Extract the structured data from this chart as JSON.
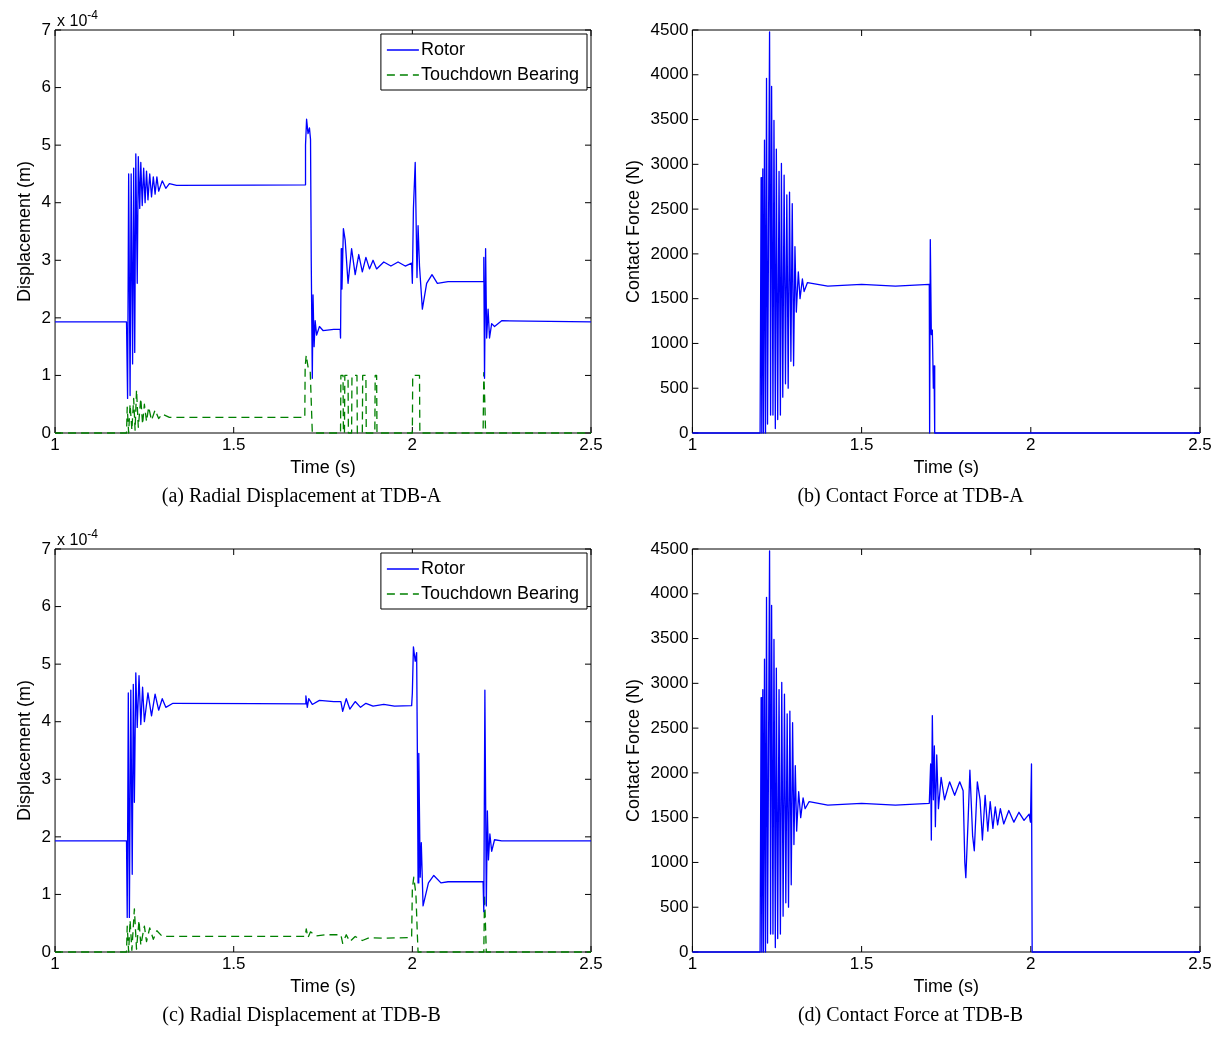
{
  "chart_data": [
    {
      "type": "line",
      "title": "(a) Radial Displacement at TDB-A",
      "xlabel": "Time (s)",
      "ylabel": "Displacement (m)",
      "annotations": [
        "x 10$^{-4}$"
      ],
      "xlim": [
        1,
        2.5
      ],
      "xticks": [
        1,
        1.5,
        2,
        2.5
      ],
      "ylim": [
        0,
        7
      ],
      "yticks": [
        0,
        1,
        2,
        3,
        4,
        5,
        6,
        7
      ],
      "grid": false,
      "legend": "top right",
      "series": [
        {
          "name": "Rotor",
          "color": "#0000ff",
          "line_style": "solid",
          "x": [
            1,
            1.2,
            1.203,
            1.206,
            1.21,
            1.213,
            1.217,
            1.22,
            1.223,
            1.226,
            1.23,
            1.233,
            1.237,
            1.24,
            1.244,
            1.248,
            1.252,
            1.256,
            1.26,
            1.265,
            1.27,
            1.275,
            1.28,
            1.285,
            1.29,
            1.3,
            1.31,
            1.32,
            1.34,
            1.7,
            1.701,
            1.704,
            1.708,
            1.712,
            1.715,
            1.717,
            1.72,
            1.722,
            1.725,
            1.728,
            1.732,
            1.74,
            1.75,
            1.78,
            1.798,
            1.799,
            1.801,
            1.803,
            1.807,
            1.812,
            1.82,
            1.83,
            1.84,
            1.85,
            1.86,
            1.87,
            1.88,
            1.89,
            1.9,
            1.92,
            1.94,
            1.96,
            1.98,
            1.998,
            2.0,
            2.003,
            2.008,
            2.013,
            2.016,
            2.02,
            2.028,
            2.04,
            2.055,
            2.07,
            2.1,
            2.198,
            2.2,
            2.202,
            2.205,
            2.208,
            2.212,
            2.216,
            2.222,
            2.23,
            2.25,
            2.5
          ],
          "values": [
            1.93,
            1.93,
            0.6,
            4.5,
            0.65,
            4.5,
            1.2,
            4.6,
            1.4,
            4.85,
            2.6,
            4.8,
            3.9,
            4.7,
            3.95,
            4.6,
            4.0,
            4.55,
            4.05,
            4.5,
            4.1,
            4.45,
            4.15,
            4.45,
            4.2,
            4.38,
            4.25,
            4.33,
            4.3,
            4.31,
            5.0,
            5.45,
            5.2,
            5.3,
            5.1,
            3.0,
            0.95,
            2.4,
            1.5,
            1.95,
            1.7,
            1.85,
            1.78,
            1.8,
            1.8,
            1.65,
            3.2,
            2.5,
            3.55,
            3.35,
            2.6,
            3.2,
            2.75,
            3.1,
            2.8,
            3.05,
            2.85,
            3.0,
            2.85,
            2.97,
            2.9,
            2.97,
            2.9,
            2.95,
            2.6,
            3.9,
            4.7,
            2.7,
            3.6,
            2.9,
            2.15,
            2.6,
            2.75,
            2.6,
            2.63,
            2.63,
            3.05,
            0.95,
            3.2,
            1.65,
            2.15,
            1.65,
            1.9,
            1.85,
            1.95,
            1.93
          ]
        },
        {
          "name": "Touchdown Bearing",
          "color": "#008000",
          "line_style": "dashed",
          "x": [
            1,
            1.2,
            1.202,
            1.206,
            1.21,
            1.215,
            1.22,
            1.224,
            1.228,
            1.233,
            1.24,
            1.245,
            1.25,
            1.256,
            1.262,
            1.27,
            1.28,
            1.29,
            1.3,
            1.32,
            1.699,
            1.7,
            1.703,
            1.708,
            1.714,
            1.72,
            1.799,
            1.8,
            1.806,
            1.807,
            1.81,
            1.811,
            1.82,
            1.821,
            1.83,
            1.831,
            1.845,
            1.846,
            1.86,
            1.861,
            1.87,
            1.871,
            1.895,
            1.896,
            1.9,
            1.901,
            2.0,
            2.001,
            2.02,
            2.021,
            2.198,
            2.2,
            2.203,
            2.205,
            2.5
          ],
          "values": [
            0,
            0,
            0.45,
            0,
            0.5,
            0.05,
            0.6,
            0.05,
            0.75,
            0.1,
            0.6,
            0.15,
            0.5,
            0.2,
            0.45,
            0.22,
            0.4,
            0.25,
            0.33,
            0.27,
            0.27,
            1.15,
            1.35,
            1.15,
            1.1,
            0,
            0,
            1.0,
            1.0,
            0,
            0,
            1.0,
            1.0,
            0,
            0,
            1.0,
            1.0,
            0,
            0,
            1.0,
            1.0,
            0,
            0,
            1.0,
            1.0,
            0,
            0,
            1.0,
            1.0,
            0,
            0,
            1.05,
            0.5,
            0,
            0
          ]
        }
      ]
    },
    {
      "type": "line",
      "title": "(b) Contact Force at TDB-A",
      "xlabel": "Time (s)",
      "ylabel": "Contact Force (N)",
      "xlim": [
        1,
        2.5
      ],
      "xticks": [
        1,
        1.5,
        2,
        2.5
      ],
      "ylim": [
        0,
        4500
      ],
      "yticks": [
        0,
        500,
        1000,
        1500,
        2000,
        2500,
        3000,
        3500,
        4000,
        4500
      ],
      "grid": false,
      "series": [
        {
          "color": "#0000ff",
          "line_style": "solid",
          "x": [
            1,
            1.2,
            1.203,
            1.205,
            1.208,
            1.21,
            1.213,
            1.216,
            1.219,
            1.222,
            1.228,
            1.231,
            1.234,
            1.238,
            1.241,
            1.245,
            1.248,
            1.252,
            1.256,
            1.26,
            1.263,
            1.267,
            1.271,
            1.275,
            1.279,
            1.283,
            1.287,
            1.291,
            1.295,
            1.299,
            1.303,
            1.307,
            1.313,
            1.318,
            1.325,
            1.33,
            1.34,
            1.4,
            1.5,
            1.6,
            1.7,
            1.701,
            1.703,
            1.706,
            1.709,
            1.712,
            1.714,
            1.716,
            2.5
          ],
          "values": [
            0,
            0,
            2850,
            0,
            2950,
            0,
            3270,
            0,
            3960,
            100,
            4480,
            200,
            3870,
            200,
            3490,
            50,
            3170,
            150,
            2920,
            200,
            3010,
            400,
            2880,
            550,
            2660,
            500,
            2690,
            800,
            2560,
            750,
            2080,
            1350,
            1800,
            1500,
            1720,
            1580,
            1680,
            1640,
            1660,
            1640,
            1660,
            0,
            2160,
            1100,
            1150,
            500,
            750,
            0,
            0
          ]
        }
      ]
    },
    {
      "type": "line",
      "title": "(c) Radial Displacement at TDB-B",
      "xlabel": "Time (s)",
      "ylabel": "Displacement (m)",
      "annotations": [
        "x 10$^{-4}$"
      ],
      "xlim": [
        1,
        2.5
      ],
      "xticks": [
        1,
        1.5,
        2,
        2.5
      ],
      "ylim": [
        0,
        7
      ],
      "yticks": [
        0,
        1,
        2,
        3,
        4,
        5,
        6,
        7
      ],
      "grid": false,
      "legend": "top right",
      "series": [
        {
          "name": "Rotor",
          "color": "#0000ff",
          "line_style": "solid",
          "x": [
            1,
            1.2,
            1.202,
            1.205,
            1.208,
            1.212,
            1.216,
            1.219,
            1.222,
            1.226,
            1.23,
            1.235,
            1.24,
            1.245,
            1.25,
            1.26,
            1.27,
            1.28,
            1.29,
            1.3,
            1.31,
            1.33,
            1.7,
            1.702,
            1.706,
            1.71,
            1.72,
            1.74,
            1.78,
            1.8,
            1.805,
            1.815,
            1.825,
            1.84,
            1.855,
            1.87,
            1.89,
            1.92,
            1.95,
            1.998,
            2.0,
            2.003,
            2.008,
            2.012,
            2.014,
            2.016,
            2.018,
            2.022,
            2.025,
            2.03,
            2.045,
            2.06,
            2.08,
            2.1,
            2.198,
            2.2,
            2.203,
            2.207,
            2.21,
            2.213,
            2.217,
            2.222,
            2.23,
            2.25,
            2.5
          ],
          "values": [
            1.93,
            1.93,
            0.6,
            4.5,
            0.6,
            4.55,
            1.35,
            4.65,
            2.6,
            4.85,
            3.9,
            4.8,
            3.95,
            4.6,
            4.0,
            4.5,
            4.1,
            4.48,
            4.2,
            4.4,
            4.25,
            4.32,
            4.31,
            4.45,
            4.25,
            4.4,
            4.3,
            4.37,
            4.35,
            4.35,
            4.18,
            4.4,
            4.22,
            4.35,
            4.25,
            4.32,
            4.27,
            4.3,
            4.27,
            4.28,
            4.5,
            5.3,
            5.05,
            5.2,
            3.5,
            1.2,
            3.45,
            1.3,
            1.9,
            0.8,
            1.2,
            1.33,
            1.2,
            1.22,
            1.22,
            0.7,
            4.55,
            0.8,
            2.45,
            1.6,
            2.05,
            1.75,
            1.95,
            1.93,
            1.93
          ]
        },
        {
          "name": "Touchdown Bearing",
          "color": "#008000",
          "line_style": "dashed",
          "x": [
            1,
            1.2,
            1.202,
            1.206,
            1.21,
            1.215,
            1.222,
            1.228,
            1.235,
            1.24,
            1.25,
            1.256,
            1.265,
            1.275,
            1.285,
            1.3,
            1.7,
            1.703,
            1.708,
            1.715,
            1.73,
            1.76,
            1.8,
            1.805,
            1.815,
            1.825,
            1.84,
            1.86,
            1.88,
            1.92,
            1.998,
            2.0,
            2.004,
            2.01,
            2.014,
            2.016,
            2.2,
            2.202,
            2.205,
            2.207,
            2.5
          ],
          "values": [
            0,
            0,
            0.45,
            0,
            0.55,
            0.03,
            0.75,
            0.05,
            0.55,
            0.12,
            0.45,
            0.18,
            0.42,
            0.22,
            0.37,
            0.27,
            0.27,
            0.4,
            0.25,
            0.35,
            0.28,
            0.3,
            0.3,
            0.15,
            0.3,
            0.18,
            0.27,
            0.2,
            0.25,
            0.24,
            0.25,
            1.1,
            1.3,
            1.0,
            0.3,
            0,
            0,
            1.0,
            0.4,
            0,
            0
          ]
        }
      ]
    },
    {
      "type": "line",
      "title": "(d) Contact Force at TDB-B",
      "xlabel": "Time (s)",
      "ylabel": "Contact Force (N)",
      "xlim": [
        1,
        2.5
      ],
      "xticks": [
        1,
        1.5,
        2,
        2.5
      ],
      "ylim": [
        0,
        4500
      ],
      "yticks": [
        0,
        500,
        1000,
        1500,
        2000,
        2500,
        3000,
        3500,
        4000,
        4500
      ],
      "grid": false,
      "series": [
        {
          "color": "#0000ff",
          "line_style": "solid",
          "x": [
            1,
            1.2,
            1.203,
            1.205,
            1.208,
            1.21,
            1.213,
            1.216,
            1.219,
            1.222,
            1.228,
            1.231,
            1.234,
            1.238,
            1.241,
            1.245,
            1.248,
            1.252,
            1.256,
            1.26,
            1.264,
            1.268,
            1.272,
            1.276,
            1.28,
            1.284,
            1.288,
            1.292,
            1.296,
            1.3,
            1.304,
            1.308,
            1.314,
            1.32,
            1.327,
            1.333,
            1.345,
            1.4,
            1.5,
            1.6,
            1.7,
            1.704,
            1.706,
            1.709,
            1.712,
            1.715,
            1.718,
            1.722,
            1.727,
            1.735,
            1.745,
            1.76,
            1.775,
            1.79,
            1.8,
            1.805,
            1.808,
            1.815,
            1.82,
            1.828,
            1.833,
            1.842,
            1.85,
            1.857,
            1.865,
            1.873,
            1.88,
            1.888,
            1.895,
            1.902,
            1.91,
            1.92,
            1.935,
            1.95,
            1.965,
            1.98,
            1.995,
            1.999,
            2.002,
            2.004,
            2.5
          ],
          "values": [
            0,
            0,
            2840,
            0,
            2930,
            0,
            3270,
            0,
            3960,
            100,
            4480,
            200,
            3870,
            200,
            3490,
            50,
            3170,
            150,
            2930,
            200,
            3010,
            400,
            2880,
            550,
            2660,
            500,
            2690,
            750,
            2560,
            1200,
            2080,
            1350,
            1790,
            1500,
            1720,
            1600,
            1680,
            1640,
            1660,
            1640,
            1660,
            2100,
            1250,
            2640,
            1700,
            2300,
            1400,
            2200,
            1600,
            1950,
            1700,
            1900,
            1750,
            1900,
            1800,
            1000,
            830,
            1500,
            2030,
            1300,
            1130,
            1900,
            1700,
            1250,
            1750,
            1350,
            1680,
            1380,
            1620,
            1420,
            1600,
            1430,
            1580,
            1450,
            1560,
            1470,
            1540,
            1450,
            2100,
            0,
            0
          ]
        }
      ]
    }
  ]
}
